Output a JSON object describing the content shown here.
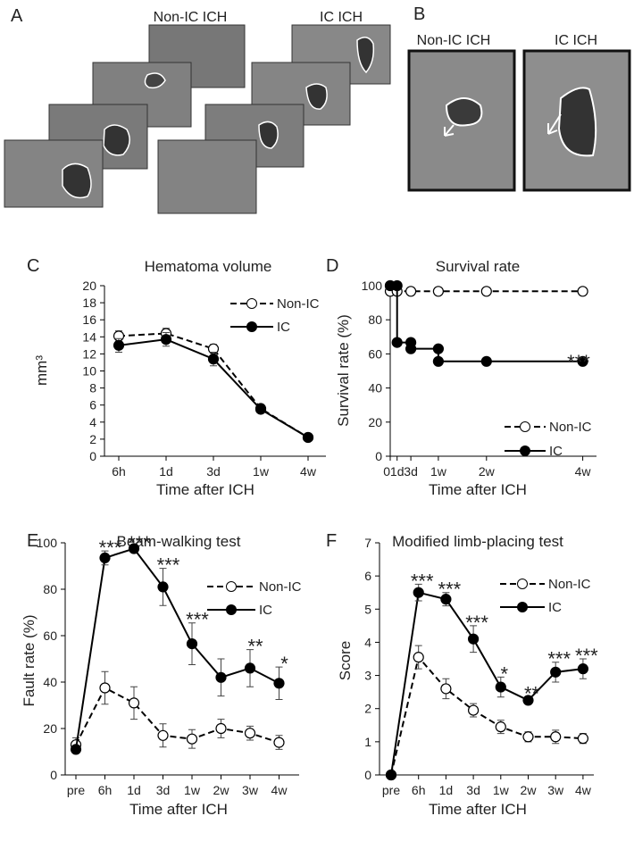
{
  "image_panels": [
    {
      "letter": "A",
      "labels": [
        "Non-IC ICH",
        "IC ICH"
      ]
    },
    {
      "letter": "B",
      "labels": [
        "Non-IC ICH",
        "IC ICH"
      ]
    }
  ],
  "chart_data": [
    {
      "type": "line",
      "letter": "C",
      "title": "Hematoma volume",
      "xlabel": "Time after ICH",
      "ylabel": "mm³",
      "categories": [
        "6h",
        "1d",
        "3d",
        "1w",
        "4w"
      ],
      "ylim": [
        0,
        20
      ],
      "yticks": [
        0,
        2,
        4,
        6,
        8,
        10,
        12,
        14,
        16,
        18,
        20
      ],
      "series": [
        {
          "name": "Non-IC",
          "color": "#000",
          "marker": "open",
          "dashed": true,
          "values": [
            14.1,
            14.4,
            12.6,
            5.6,
            2.2
          ],
          "errors": [
            0.6,
            0.6,
            0.5,
            0.3,
            0.2
          ]
        },
        {
          "name": "IC",
          "color": "#000",
          "marker": "filled",
          "dashed": false,
          "values": [
            13.0,
            13.7,
            11.4,
            5.5,
            2.2
          ],
          "errors": [
            0.8,
            0.8,
            0.8,
            0.3,
            0.2
          ]
        }
      ]
    },
    {
      "type": "step",
      "letter": "D",
      "title": "Survival rate",
      "xlabel": "Time after ICH",
      "ylabel": "Survival rate (%)",
      "xlim": [
        0,
        30
      ],
      "xticks": [
        0,
        {
          "value": 1,
          "label": "1d"
        },
        {
          "value": 3,
          "label": "3d"
        },
        {
          "value": 7,
          "label": "1w"
        },
        {
          "value": 14,
          "label": "2w"
        },
        {
          "value": 28,
          "label": "4w"
        }
      ],
      "ylim": [
        0,
        100
      ],
      "yticks": [
        0,
        20,
        40,
        60,
        80,
        100
      ],
      "annotation": "***",
      "series": [
        {
          "name": "Non-IC",
          "color": "#000",
          "marker": "open",
          "dashed": true,
          "x": [
            0,
            0,
            1,
            3,
            7,
            14,
            28
          ],
          "values": [
            100,
            96.7,
            96.7,
            96.7,
            96.7,
            96.7,
            96.7
          ]
        },
        {
          "name": "IC",
          "color": "#000",
          "marker": "filled",
          "dashed": false,
          "x": [
            0,
            1,
            1,
            3,
            3,
            7,
            7,
            14,
            28
          ],
          "values": [
            100,
            100,
            66.7,
            66.7,
            63,
            63,
            55.6,
            55.6,
            55.6
          ]
        }
      ]
    },
    {
      "type": "line",
      "letter": "E",
      "title": "Beam-walking test",
      "xlabel": "Time after ICH",
      "ylabel": "Fault rate (%)",
      "categories": [
        "pre",
        "6h",
        "1d",
        "3d",
        "1w",
        "2w",
        "3w",
        "4w"
      ],
      "ylim": [
        0,
        100
      ],
      "yticks": [
        0,
        20,
        40,
        60,
        80,
        100
      ],
      "significance": [
        null,
        "***",
        "***",
        "***",
        "***",
        null,
        "**",
        "*"
      ],
      "series": [
        {
          "name": "Non-IC",
          "color": "#000",
          "marker": "open",
          "dashed": true,
          "values": [
            13,
            37.5,
            31,
            17,
            15.5,
            20,
            18,
            14
          ],
          "errors": [
            3,
            7,
            7,
            5,
            4,
            4,
            3,
            3
          ]
        },
        {
          "name": "IC",
          "color": "#000",
          "marker": "filled",
          "dashed": false,
          "values": [
            11,
            93.5,
            97.5,
            81,
            56.5,
            42,
            46,
            39.5
          ],
          "errors": [
            1,
            3,
            1,
            8,
            9,
            8,
            8,
            7
          ]
        }
      ]
    },
    {
      "type": "line",
      "letter": "F",
      "title": "Modified limb-placing test",
      "xlabel": "Time after ICH",
      "ylabel": "Score",
      "categories": [
        "pre",
        "6h",
        "1d",
        "3d",
        "1w",
        "2w",
        "3w",
        "4w"
      ],
      "ylim": [
        0,
        7
      ],
      "yticks": [
        0,
        1,
        2,
        3,
        4,
        5,
        6,
        7
      ],
      "significance": [
        null,
        "***",
        "***",
        "***",
        "*",
        "**",
        "***",
        "***"
      ],
      "series": [
        {
          "name": "Non-IC",
          "color": "#000",
          "marker": "open",
          "dashed": true,
          "values": [
            0,
            3.55,
            2.6,
            1.95,
            1.45,
            1.15,
            1.15,
            1.1
          ],
          "errors": [
            0,
            0.35,
            0.3,
            0.2,
            0.2,
            0.15,
            0.2,
            0.15
          ]
        },
        {
          "name": "IC",
          "color": "#000",
          "marker": "filled",
          "dashed": false,
          "values": [
            0,
            5.5,
            5.3,
            4.1,
            2.65,
            2.25,
            3.1,
            3.2
          ],
          "errors": [
            0,
            0.25,
            0.2,
            0.4,
            0.3,
            0.1,
            0.3,
            0.3
          ]
        }
      ]
    }
  ]
}
